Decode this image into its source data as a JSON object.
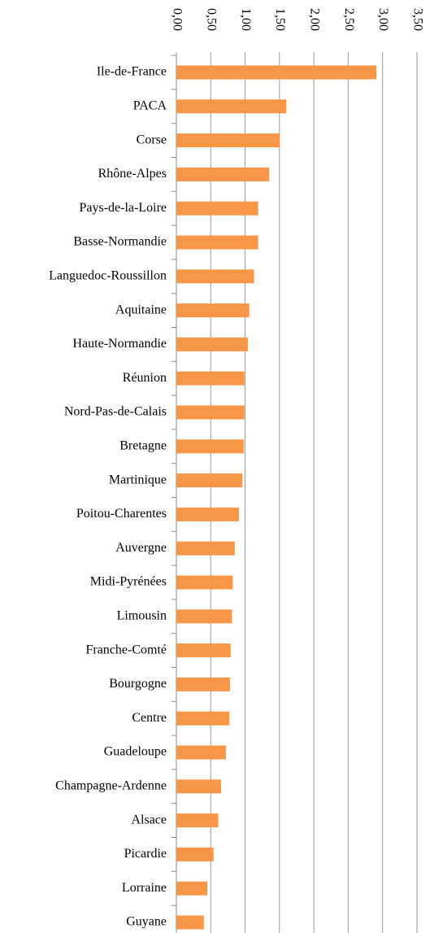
{
  "chart_data": {
    "type": "barh",
    "categories": [
      "Ile-de-France",
      "PACA",
      "Corse",
      "Rhône-Alpes",
      "Pays-de-la-Loire",
      "Basse-Normandie",
      "Languedoc-Roussillon",
      "Aquitaine",
      "Haute-Normandie",
      "Réunion",
      "Nord-Pas-de-Calais",
      "Bretagne",
      "Martinique",
      "Poitou-Charentes",
      "Auvergne",
      "Midi-Pyrénées",
      "Limousin",
      "Franche-Comté",
      "Bourgogne",
      "Centre",
      "Guadeloupe",
      "Champagne-Ardenne",
      "Alsace",
      "Picardie",
      "Lorraine",
      "Guyane"
    ],
    "values": [
      2.91,
      1.6,
      1.5,
      1.35,
      1.19,
      1.19,
      1.13,
      1.06,
      1.04,
      0.99,
      0.99,
      0.98,
      0.96,
      0.91,
      0.85,
      0.82,
      0.81,
      0.79,
      0.78,
      0.77,
      0.72,
      0.65,
      0.61,
      0.54,
      0.45,
      0.4
    ],
    "color": "#f79646",
    "xlim": [
      0,
      3.5
    ],
    "xticks": [
      {
        "value": 0,
        "label": "0,00"
      },
      {
        "value": 0.5,
        "label": "0,50"
      },
      {
        "value": 1,
        "label": "1,00"
      },
      {
        "value": 1.5,
        "label": "1,50"
      },
      {
        "value": 2,
        "label": "2,00"
      },
      {
        "value": 2.5,
        "label": "2,50"
      },
      {
        "value": 3,
        "label": "3,00"
      },
      {
        "value": 3.5,
        "label": "3,50"
      }
    ],
    "grid": true
  }
}
